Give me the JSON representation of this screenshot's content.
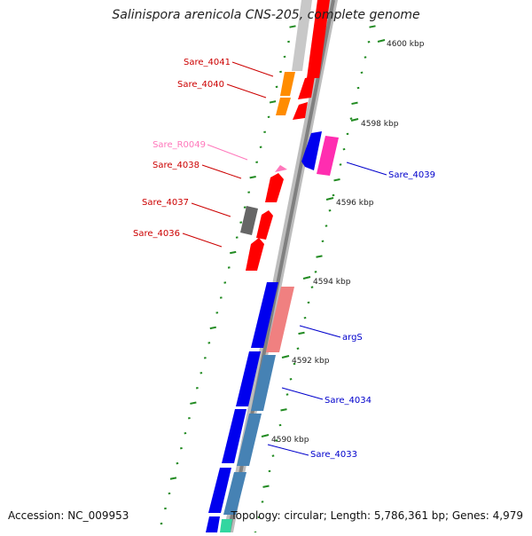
{
  "title": "Salinispora arenicola CNS-205, complete genome",
  "footer": {
    "accession": "Accession: NC_009953",
    "summary": "Topology: circular; Length: 5,786,361 bp; Genes: 4,979"
  },
  "colors": {
    "backbone": "#808080",
    "tick": "#228b22",
    "label_forward": "#cc0000",
    "label_reverse": "#0000cc",
    "label_rna": "#ff77bb"
  },
  "kbp_ticks": [
    "4600 kbp",
    "4598 kbp",
    "4596 kbp",
    "4594 kbp",
    "4592 kbp",
    "4590 kbp"
  ],
  "genes": [
    {
      "label": "Sare_4041",
      "side": "left",
      "color": "#ff0000"
    },
    {
      "label": "Sare_4040",
      "side": "left",
      "color": "#ff8800"
    },
    {
      "label": "Sare_R0049",
      "side": "left",
      "color": "#ff77bb"
    },
    {
      "label": "Sare_4038",
      "side": "left",
      "color": "#ff0000"
    },
    {
      "label": "Sare_4037",
      "side": "left",
      "color": "#ff0000"
    },
    {
      "label": "Sare_4036",
      "side": "left",
      "color": "#ff0000"
    },
    {
      "label": "Sare_4039",
      "side": "right",
      "color": "#ff33aa"
    },
    {
      "label": "argS",
      "side": "right",
      "color": "#f08080"
    },
    {
      "label": "Sare_4034",
      "side": "right",
      "color": "#4682b4"
    },
    {
      "label": "Sare_4033",
      "side": "right",
      "color": "#4682b4"
    }
  ]
}
